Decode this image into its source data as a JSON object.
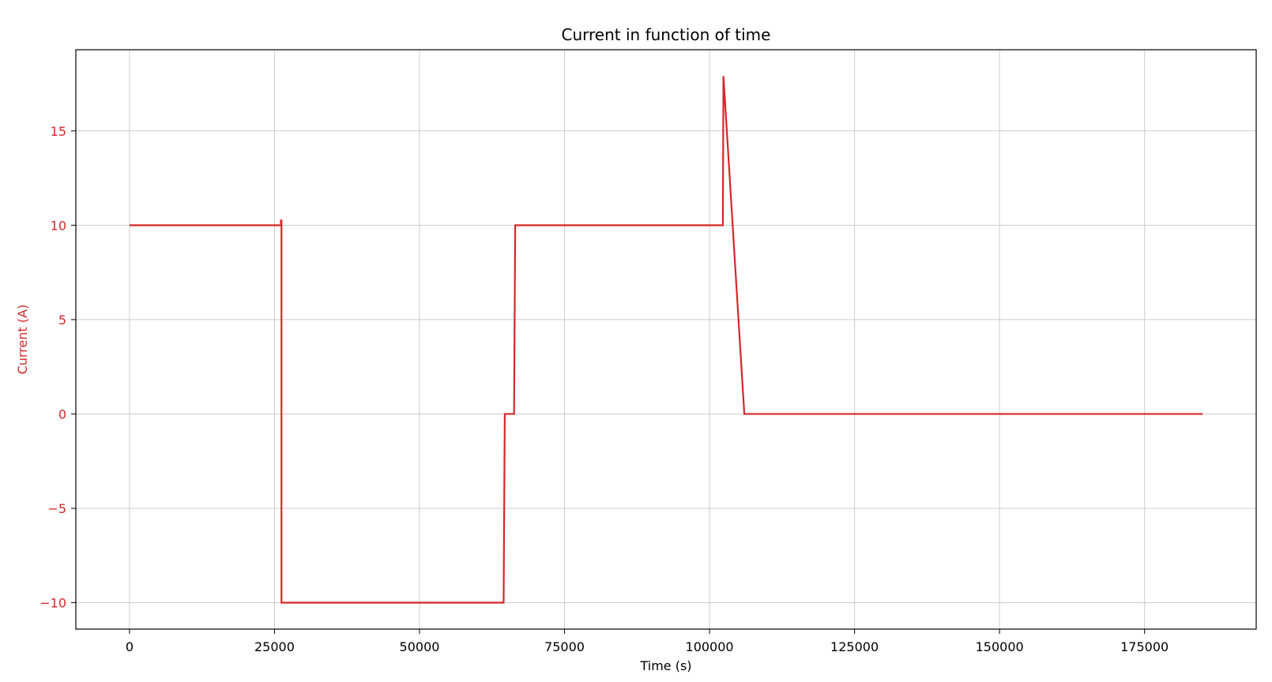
{
  "chart_data": {
    "type": "line",
    "title": "Current in function of time",
    "xlabel": "Time (s)",
    "ylabel": "Current (A)",
    "xlim": [
      -9250,
      194250
    ],
    "ylim": [
      -11.4,
      19.3
    ],
    "xticks": [
      0,
      25000,
      50000,
      75000,
      100000,
      125000,
      150000,
      175000
    ],
    "xtick_labels": [
      "0",
      "25000",
      "50000",
      "75000",
      "100000",
      "125000",
      "150000",
      "175000"
    ],
    "yticks": [
      -10,
      -5,
      0,
      5,
      10,
      15
    ],
    "ytick_labels": [
      "−10",
      "−5",
      "0",
      "5",
      "10",
      "15"
    ],
    "grid": true,
    "colors": {
      "series": "#d62728",
      "ylabel": "#d62728",
      "yticks": "#d62728",
      "grid": "#cccccc"
    },
    "series": [
      {
        "x": [
          0,
          26100,
          26100,
          26200,
          26200,
          26300,
          64500,
          64700,
          66300,
          66500,
          102300,
          102400,
          106000,
          185000
        ],
        "y": [
          10,
          10,
          10.25,
          10.25,
          -10,
          -10,
          -10,
          0,
          0,
          10,
          10,
          17.9,
          0,
          0
        ]
      }
    ]
  }
}
